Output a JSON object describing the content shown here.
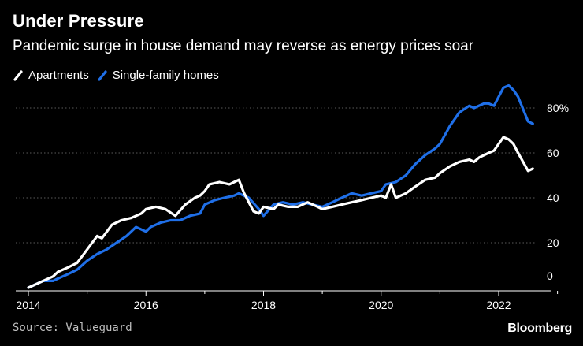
{
  "header": {
    "title": "Under Pressure",
    "subtitle": "Pandemic surge in house demand may reverse as energy prices soar"
  },
  "legend": {
    "items": [
      {
        "label": "Apartments",
        "color": "#ffffff",
        "icon": "slash-swatch-icon"
      },
      {
        "label": "Single-family homes",
        "color": "#1f6fe8",
        "icon": "slash-swatch-icon"
      }
    ]
  },
  "footer": {
    "source": "Source: Valueguard",
    "brand": "Bloomberg"
  },
  "chart_data": {
    "type": "line",
    "title": "Under Pressure",
    "subtitle": "Pandemic surge in house demand may reverse as energy prices soar",
    "xlabel": "",
    "ylabel": "",
    "xlim": [
      2014,
      2023.0
    ],
    "ylim": [
      0,
      90
    ],
    "grid": true,
    "legend_position": "top-left",
    "x_ticks": [
      2014,
      2016,
      2018,
      2020,
      2022
    ],
    "x_tick_labels": [
      "2014",
      "2016",
      "2018",
      "2020",
      "2022"
    ],
    "y_ticks": [
      0,
      20,
      40,
      60,
      80
    ],
    "y_tick_labels": [
      "0",
      "20",
      "40",
      "60",
      "80%"
    ],
    "series": [
      {
        "name": "Apartments",
        "color": "#ffffff",
        "x": [
          2014.0,
          2014.25,
          2014.42,
          2014.5,
          2014.67,
          2014.83,
          2015.0,
          2015.17,
          2015.25,
          2015.42,
          2015.58,
          2015.75,
          2015.92,
          2016.0,
          2016.17,
          2016.33,
          2016.5,
          2016.67,
          2016.83,
          2016.92,
          2017.0,
          2017.08,
          2017.25,
          2017.42,
          2017.5,
          2017.58,
          2017.67,
          2017.83,
          2017.92,
          2018.0,
          2018.17,
          2018.25,
          2018.42,
          2018.58,
          2018.75,
          2018.92,
          2019.0,
          2019.17,
          2019.33,
          2019.5,
          2019.67,
          2019.83,
          2020.0,
          2020.08,
          2020.17,
          2020.25,
          2020.42,
          2020.58,
          2020.75,
          2020.92,
          2021.0,
          2021.17,
          2021.33,
          2021.5,
          2021.58,
          2021.67,
          2021.83,
          2021.92,
          2022.0,
          2022.08,
          2022.17,
          2022.25,
          2022.33,
          2022.5,
          2022.58
        ],
        "values": [
          0,
          3,
          5,
          7,
          9,
          11,
          17,
          23,
          22,
          28,
          30,
          31,
          33,
          35,
          36,
          35,
          32,
          37,
          40,
          41,
          43,
          46,
          47,
          46,
          47,
          48,
          42,
          34,
          33,
          36,
          35,
          37,
          36,
          36,
          38,
          36,
          35,
          36,
          37,
          38,
          39,
          40,
          41,
          40,
          46,
          40,
          42,
          45,
          48,
          49,
          51,
          54,
          56,
          57,
          56,
          58,
          60,
          61,
          64,
          67,
          66,
          64,
          60,
          52,
          53
        ]
      },
      {
        "name": "Single-family homes",
        "color": "#1f6fe8",
        "x": [
          2014.0,
          2014.25,
          2014.42,
          2014.5,
          2014.67,
          2014.83,
          2015.0,
          2015.17,
          2015.33,
          2015.5,
          2015.67,
          2015.83,
          2016.0,
          2016.08,
          2016.25,
          2016.42,
          2016.58,
          2016.75,
          2016.92,
          2017.0,
          2017.17,
          2017.33,
          2017.5,
          2017.58,
          2017.75,
          2017.92,
          2018.0,
          2018.17,
          2018.33,
          2018.5,
          2018.67,
          2018.83,
          2019.0,
          2019.17,
          2019.33,
          2019.5,
          2019.67,
          2019.83,
          2020.0,
          2020.08,
          2020.25,
          2020.42,
          2020.58,
          2020.75,
          2020.92,
          2021.0,
          2021.17,
          2021.33,
          2021.5,
          2021.58,
          2021.75,
          2021.83,
          2021.92,
          2022.0,
          2022.08,
          2022.17,
          2022.25,
          2022.33,
          2022.5,
          2022.58
        ],
        "values": [
          0,
          3,
          3,
          4,
          6,
          8,
          12,
          15,
          17,
          20,
          23,
          27,
          25,
          27,
          29,
          30,
          30,
          32,
          33,
          37,
          39,
          40,
          41,
          42,
          40,
          35,
          32,
          37,
          38,
          37,
          38,
          37,
          36,
          38,
          40,
          42,
          41,
          42,
          43,
          46,
          47,
          50,
          55,
          59,
          62,
          64,
          72,
          78,
          81,
          80,
          82,
          82,
          81,
          85,
          89,
          90,
          88,
          85,
          74,
          73
        ]
      }
    ]
  }
}
